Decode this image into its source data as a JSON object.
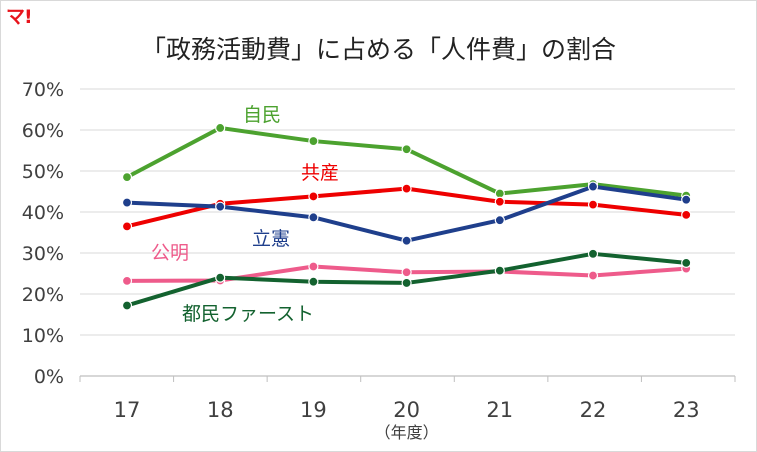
{
  "logo": "マ!",
  "chart_data": {
    "type": "line",
    "title": "「政務活動費」に占める「人件費」の割合",
    "xlabel": "（年度）",
    "ylabel": "",
    "x": [
      "17",
      "18",
      "19",
      "20",
      "21",
      "22",
      "23"
    ],
    "ylim": [
      0,
      70
    ],
    "yticks": [
      "0%",
      "10%",
      "20%",
      "30%",
      "40%",
      "50%",
      "60%",
      "70%"
    ],
    "grid": true,
    "legend": "inline labels",
    "series": [
      {
        "name": "自民",
        "color": "#4ca22f",
        "values": [
          48.5,
          60.5,
          57.3,
          55.3,
          44.5,
          46.8,
          44.0
        ]
      },
      {
        "name": "共産",
        "color": "#ee0000",
        "values": [
          36.5,
          42.0,
          43.8,
          45.7,
          42.5,
          41.8,
          39.3
        ]
      },
      {
        "name": "立憲",
        "color": "#1f3f8c",
        "values": [
          42.3,
          41.3,
          38.7,
          33.0,
          38.0,
          46.2,
          43.0
        ]
      },
      {
        "name": "公明",
        "color": "#ee5b8b",
        "values": [
          23.2,
          23.3,
          26.7,
          25.3,
          25.5,
          24.5,
          26.2
        ]
      },
      {
        "name": "都民ファースト",
        "color": "#13622f",
        "values": [
          17.2,
          24.0,
          23.0,
          22.7,
          25.7,
          29.8,
          27.6
        ]
      }
    ]
  }
}
